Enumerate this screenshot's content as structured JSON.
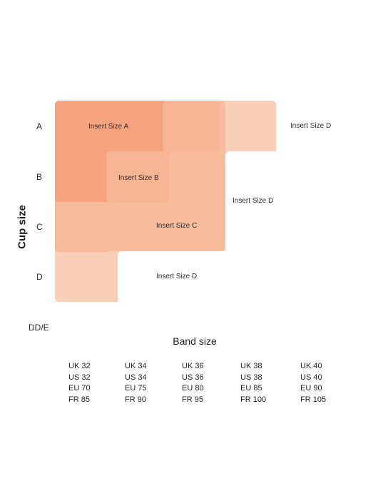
{
  "y_axis_label": "Cup size",
  "x_axis_label": "Band size",
  "cup_rows": [
    "A",
    "B",
    "C",
    "D"
  ],
  "extra_row": "DD/E",
  "insert_labels": {
    "a": "Insert Size A",
    "b": "Insert Size B",
    "c": "Insert Size C",
    "d_row_a": "Insert Size D",
    "d_row_b": "Insert Size D",
    "d_row_d": "Insert Size D"
  },
  "band_sizes": [
    {
      "uk": "UK 32",
      "us": "US 32",
      "eu": "EU 70",
      "fr": "FR 85"
    },
    {
      "uk": "UK 34",
      "us": "US 34",
      "eu": "EU 75",
      "fr": "FR 90"
    },
    {
      "uk": "UK 36",
      "us": "US 36",
      "eu": "EU 80",
      "fr": "FR 95"
    },
    {
      "uk": "UK 38",
      "us": "US 38",
      "eu": "EU 85",
      "fr": "FR 100"
    },
    {
      "uk": "UK 40",
      "us": "US 40",
      "eu": "EU 90",
      "fr": "FR 105"
    }
  ],
  "colors": {
    "insert_a": "#f5a47f",
    "insert_b": "#f7b595",
    "insert_c": "#f8bb9b",
    "insert_d": "#f9cfb8"
  }
}
